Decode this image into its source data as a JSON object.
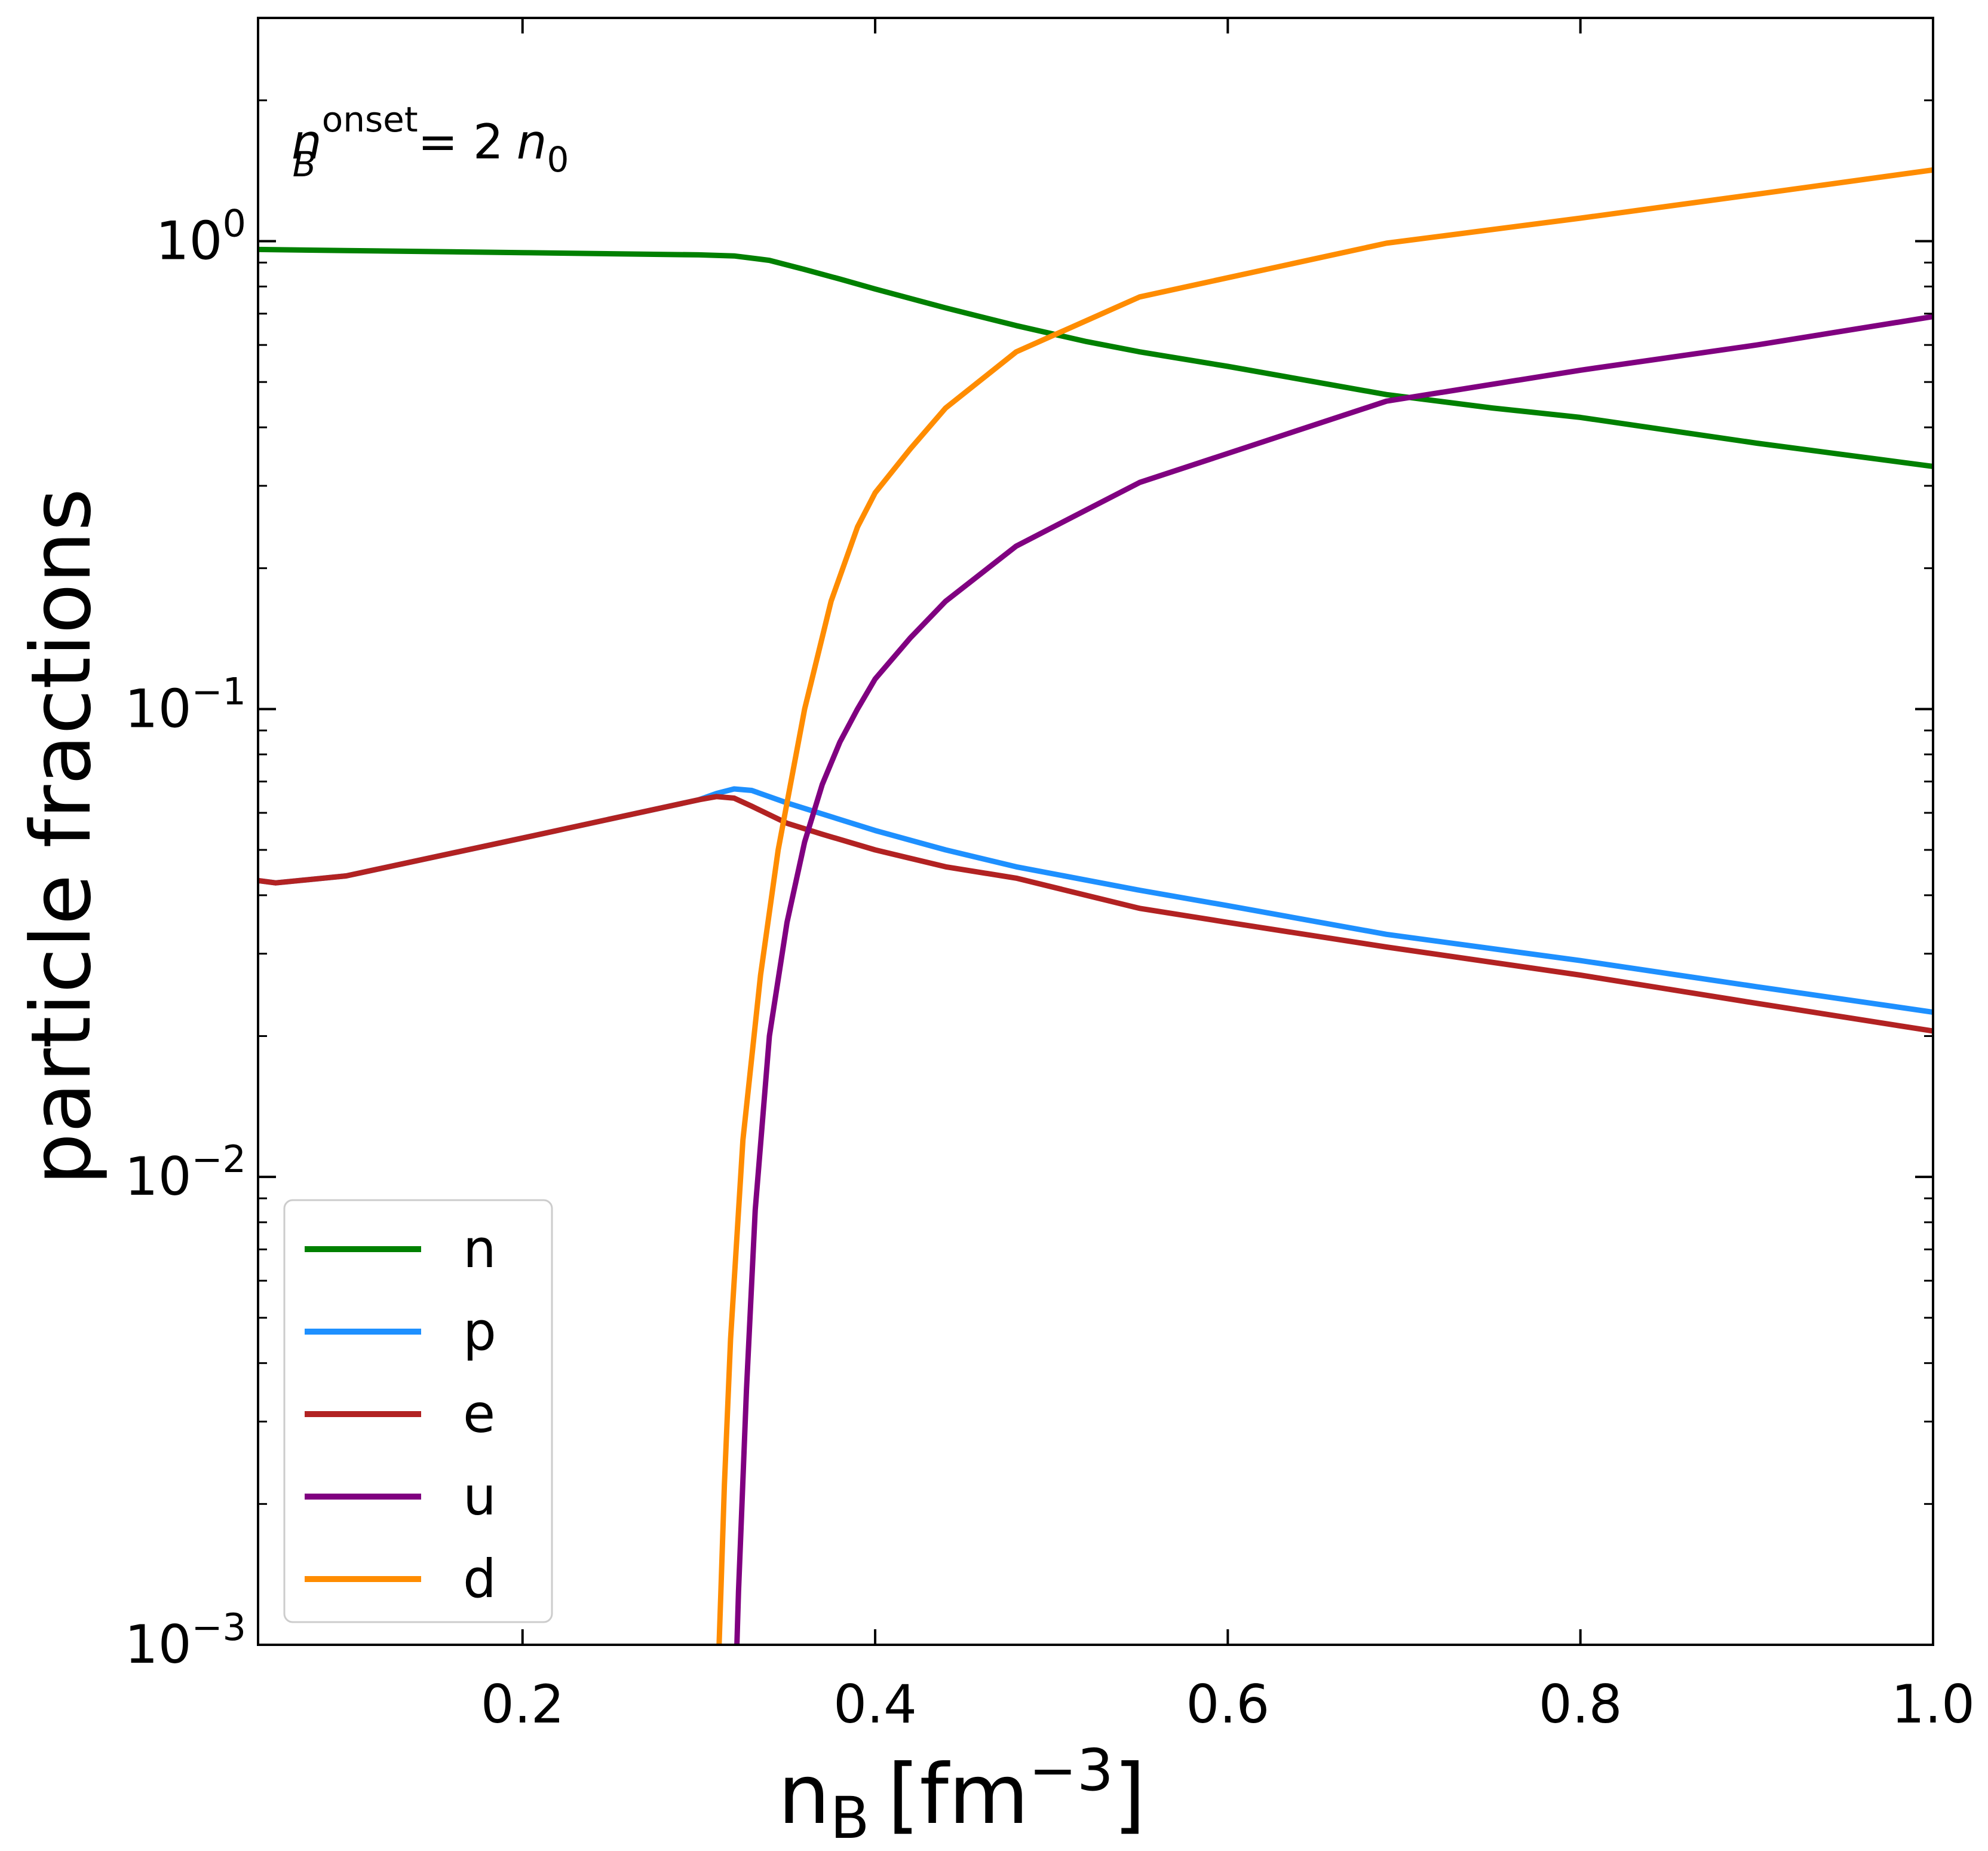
{
  "chart_data": {
    "type": "line",
    "xlabel": "n",
    "xlabel_sub": "B",
    "xlabel_units": "[fm",
    "xlabel_units_sup": "−3",
    "xlabel_close": "]",
    "ylabel": "particle fractions",
    "xlim": [
      0.05,
      1.0
    ],
    "ylim": [
      0.001,
      3.0
    ],
    "yscale": "log",
    "xticks": [
      0.2,
      0.4,
      0.6,
      0.8,
      1.0
    ],
    "xtick_labels": [
      "0.2",
      "0.4",
      "0.6",
      "0.8",
      "1.0"
    ],
    "yticks": [
      {
        "value": 0.001,
        "base": "10",
        "exp": "−3"
      },
      {
        "value": 0.01,
        "base": "10",
        "exp": "−2"
      },
      {
        "value": 0.1,
        "base": "10",
        "exp": "−1"
      },
      {
        "value": 1.0,
        "base": "10",
        "exp": "0"
      }
    ],
    "grid": false,
    "legend_position": "lower-left",
    "annotation": {
      "var": "n",
      "sub": "B",
      "sup": "onset",
      "equals": "=  2",
      "rhs_var": "n",
      "rhs_sub": "0"
    },
    "series": [
      {
        "name": "n",
        "color": "#008000",
        "x": [
          0.05,
          0.1,
          0.2,
          0.3,
          0.32,
          0.34,
          0.36,
          0.38,
          0.4,
          0.44,
          0.48,
          0.52,
          0.55,
          0.6,
          0.65,
          0.69,
          0.75,
          0.8,
          0.9,
          1.0
        ],
        "y": [
          0.96,
          0.955,
          0.945,
          0.935,
          0.93,
          0.91,
          0.87,
          0.83,
          0.79,
          0.72,
          0.66,
          0.61,
          0.58,
          0.54,
          0.5,
          0.47,
          0.44,
          0.42,
          0.37,
          0.33
        ]
      },
      {
        "name": "p",
        "color": "#1E90FF",
        "x": [
          0.05,
          0.06,
          0.1,
          0.2,
          0.3,
          0.31,
          0.32,
          0.33,
          0.35,
          0.4,
          0.44,
          0.48,
          0.55,
          0.6,
          0.69,
          0.8,
          0.9,
          1.0
        ],
        "y": [
          0.043,
          0.0425,
          0.044,
          0.053,
          0.064,
          0.066,
          0.0675,
          0.067,
          0.063,
          0.055,
          0.05,
          0.046,
          0.041,
          0.038,
          0.033,
          0.029,
          0.0255,
          0.0225
        ]
      },
      {
        "name": "e",
        "color": "#B22222",
        "x": [
          0.05,
          0.06,
          0.1,
          0.2,
          0.3,
          0.31,
          0.32,
          0.33,
          0.35,
          0.37,
          0.4,
          0.44,
          0.48,
          0.55,
          0.6,
          0.69,
          0.8,
          0.9,
          1.0
        ],
        "y": [
          0.043,
          0.0425,
          0.044,
          0.053,
          0.064,
          0.065,
          0.0645,
          0.062,
          0.057,
          0.054,
          0.05,
          0.046,
          0.0435,
          0.0375,
          0.035,
          0.031,
          0.027,
          0.0235,
          0.0205
        ]
      },
      {
        "name": "u",
        "color": "#800080",
        "x": [
          0.3216,
          0.3225,
          0.324,
          0.327,
          0.332,
          0.34,
          0.35,
          0.36,
          0.37,
          0.38,
          0.39,
          0.4,
          0.42,
          0.44,
          0.48,
          0.55,
          0.69,
          0.8,
          0.9,
          1.0
        ],
        "y": [
          0.001,
          0.0013,
          0.0018,
          0.0035,
          0.0085,
          0.02,
          0.035,
          0.052,
          0.069,
          0.085,
          0.1,
          0.116,
          0.142,
          0.17,
          0.223,
          0.305,
          0.455,
          0.53,
          0.6,
          0.69
        ]
      },
      {
        "name": "d",
        "color": "#FF8C00",
        "x": [
          0.3115,
          0.3125,
          0.3145,
          0.318,
          0.325,
          0.335,
          0.345,
          0.36,
          0.375,
          0.39,
          0.4,
          0.42,
          0.44,
          0.48,
          0.55,
          0.69,
          0.8,
          0.9,
          1.0
        ],
        "y": [
          0.001,
          0.0013,
          0.0022,
          0.0045,
          0.012,
          0.027,
          0.05,
          0.1,
          0.17,
          0.245,
          0.29,
          0.36,
          0.44,
          0.58,
          0.76,
          0.99,
          1.12,
          1.26,
          1.42
        ]
      }
    ]
  }
}
